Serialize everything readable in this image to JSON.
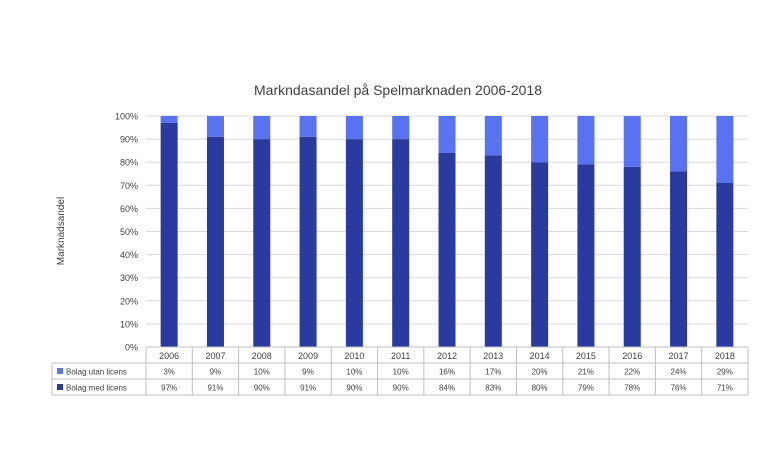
{
  "chart_data": {
    "type": "bar",
    "stacked": true,
    "title": "Markndasandel på Spelmarknaden 2006-2018",
    "ylabel": "Marknadsandel",
    "xlabel": "",
    "ylim": [
      0,
      100
    ],
    "y_ticks": [
      "0%",
      "10%",
      "20%",
      "30%",
      "40%",
      "50%",
      "60%",
      "70%",
      "80%",
      "90%",
      "100%"
    ],
    "grid": true,
    "legend": "data-table-left",
    "categories": [
      "2006",
      "2007",
      "2008",
      "2009",
      "2010",
      "2011",
      "2012",
      "2013",
      "2014",
      "2015",
      "2016",
      "2017",
      "2018"
    ],
    "series": [
      {
        "name": "Bolag med licens",
        "color": "#2b3a9e",
        "values": [
          97,
          91,
          90,
          91,
          90,
          90,
          84,
          83,
          80,
          79,
          78,
          76,
          71
        ],
        "labels": [
          "97%",
          "91%",
          "90%",
          "91%",
          "90%",
          "90%",
          "84%",
          "83%",
          "80%",
          "79%",
          "78%",
          "76%",
          "71%"
        ]
      },
      {
        "name": "Bolag utan licens",
        "color": "#5872f0",
        "values": [
          3,
          9,
          10,
          9,
          10,
          10,
          16,
          17,
          20,
          21,
          22,
          24,
          29
        ],
        "labels": [
          "3%",
          "9%",
          "10%",
          "9%",
          "10%",
          "10%",
          "16%",
          "17%",
          "20%",
          "21%",
          "22%",
          "24%",
          "29%"
        ]
      }
    ]
  }
}
